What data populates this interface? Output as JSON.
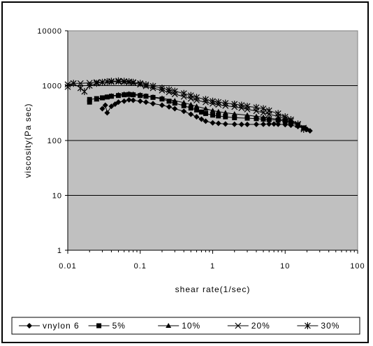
{
  "chart_data": {
    "type": "scatter",
    "xlabel": "shear rate(1/sec)",
    "ylabel": "viscosity(Pa sec)",
    "x_scale": "log",
    "y_scale": "log",
    "xlim": [
      0.01,
      100
    ],
    "ylim": [
      1,
      10000
    ],
    "x_ticks": [
      "0.01",
      "0.1",
      "1",
      "10",
      "100"
    ],
    "y_ticks": [
      "1",
      "10",
      "100",
      "1000",
      "10000"
    ],
    "grid": true,
    "plot_background": "#c0c0c0",
    "legend_position": "bottom",
    "series": [
      {
        "name": "vnylon 6",
        "marker": "diamond",
        "points": [
          [
            0.03,
            380
          ],
          [
            0.033,
            440
          ],
          [
            0.035,
            320
          ],
          [
            0.04,
            420
          ],
          [
            0.045,
            460
          ],
          [
            0.05,
            500
          ],
          [
            0.06,
            520
          ],
          [
            0.07,
            550
          ],
          [
            0.08,
            540
          ],
          [
            0.1,
            520
          ],
          [
            0.12,
            500
          ],
          [
            0.15,
            470
          ],
          [
            0.2,
            440
          ],
          [
            0.25,
            410
          ],
          [
            0.3,
            380
          ],
          [
            0.4,
            340
          ],
          [
            0.5,
            300
          ],
          [
            0.6,
            270
          ],
          [
            0.7,
            245
          ],
          [
            0.8,
            225
          ],
          [
            1,
            210
          ],
          [
            1.2,
            205
          ],
          [
            1.5,
            200
          ],
          [
            2,
            198
          ],
          [
            2.5,
            196
          ],
          [
            3,
            196
          ],
          [
            4,
            197
          ],
          [
            5,
            198
          ],
          [
            6,
            200
          ],
          [
            7,
            200
          ],
          [
            8,
            198
          ],
          [
            10,
            195
          ],
          [
            12,
            190
          ],
          [
            15,
            180
          ],
          [
            20,
            160
          ],
          [
            22,
            150
          ]
        ]
      },
      {
        "name": "5%",
        "marker": "square",
        "points": [
          [
            0.02,
            500
          ],
          [
            0.02,
            560
          ],
          [
            0.025,
            580
          ],
          [
            0.03,
            600
          ],
          [
            0.035,
            620
          ],
          [
            0.04,
            640
          ],
          [
            0.05,
            660
          ],
          [
            0.06,
            680
          ],
          [
            0.07,
            690
          ],
          [
            0.08,
            680
          ],
          [
            0.1,
            660
          ],
          [
            0.12,
            640
          ],
          [
            0.15,
            610
          ],
          [
            0.2,
            570
          ],
          [
            0.25,
            520
          ],
          [
            0.3,
            480
          ],
          [
            0.4,
            430
          ],
          [
            0.5,
            390
          ],
          [
            0.6,
            360
          ],
          [
            0.7,
            330
          ],
          [
            0.8,
            310
          ],
          [
            1,
            290
          ],
          [
            1.2,
            280
          ],
          [
            1.5,
            270
          ],
          [
            2,
            260
          ],
          [
            3,
            255
          ],
          [
            4,
            250
          ],
          [
            5,
            245
          ],
          [
            6,
            240
          ],
          [
            8,
            235
          ],
          [
            10,
            225
          ],
          [
            12,
            210
          ],
          [
            15,
            190
          ],
          [
            18,
            170
          ]
        ]
      },
      {
        "name": "10%",
        "marker": "triangle",
        "points": [
          [
            0.025,
            560
          ],
          [
            0.03,
            590
          ],
          [
            0.035,
            620
          ],
          [
            0.04,
            650
          ],
          [
            0.05,
            680
          ],
          [
            0.06,
            700
          ],
          [
            0.07,
            710
          ],
          [
            0.08,
            700
          ],
          [
            0.1,
            680
          ],
          [
            0.12,
            650
          ],
          [
            0.15,
            620
          ],
          [
            0.2,
            590
          ],
          [
            0.3,
            530
          ],
          [
            0.4,
            490
          ],
          [
            0.5,
            450
          ],
          [
            0.6,
            420
          ],
          [
            0.8,
            380
          ],
          [
            1,
            350
          ],
          [
            1.2,
            335
          ],
          [
            1.5,
            320
          ],
          [
            2,
            305
          ],
          [
            3,
            290
          ],
          [
            4,
            275
          ],
          [
            5,
            265
          ],
          [
            6,
            255
          ],
          [
            8,
            245
          ],
          [
            10,
            235
          ],
          [
            12,
            220
          ],
          [
            15,
            200
          ]
        ]
      },
      {
        "name": "20%",
        "marker": "x",
        "points": [
          [
            0.01,
            1050
          ],
          [
            0.012,
            1100
          ],
          [
            0.015,
            1100
          ],
          [
            0.02,
            1120
          ],
          [
            0.025,
            1150
          ],
          [
            0.03,
            1150
          ],
          [
            0.04,
            1170
          ],
          [
            0.05,
            1180
          ],
          [
            0.06,
            1170
          ],
          [
            0.07,
            1150
          ],
          [
            0.08,
            1120
          ],
          [
            0.1,
            1050
          ],
          [
            0.12,
            980
          ],
          [
            0.15,
            900
          ],
          [
            0.2,
            820
          ],
          [
            0.25,
            760
          ],
          [
            0.3,
            700
          ],
          [
            0.4,
            630
          ],
          [
            0.5,
            580
          ],
          [
            0.6,
            540
          ],
          [
            0.8,
            500
          ],
          [
            1,
            470
          ],
          [
            1.2,
            450
          ],
          [
            1.5,
            430
          ],
          [
            2,
            410
          ],
          [
            2.5,
            390
          ],
          [
            3,
            370
          ],
          [
            4,
            345
          ],
          [
            5,
            320
          ],
          [
            6,
            300
          ],
          [
            8,
            275
          ],
          [
            10,
            250
          ],
          [
            12,
            225
          ],
          [
            15,
            195
          ],
          [
            18,
            170
          ]
        ]
      },
      {
        "name": "30%",
        "marker": "asterisk",
        "points": [
          [
            0.01,
            950
          ],
          [
            0.012,
            1100
          ],
          [
            0.015,
            900
          ],
          [
            0.017,
            780
          ],
          [
            0.02,
            1000
          ],
          [
            0.025,
            1100
          ],
          [
            0.03,
            1150
          ],
          [
            0.035,
            1180
          ],
          [
            0.04,
            1200
          ],
          [
            0.05,
            1220
          ],
          [
            0.06,
            1200
          ],
          [
            0.07,
            1180
          ],
          [
            0.08,
            1150
          ],
          [
            0.1,
            1100
          ],
          [
            0.12,
            1040
          ],
          [
            0.15,
            980
          ],
          [
            0.2,
            900
          ],
          [
            0.25,
            840
          ],
          [
            0.3,
            790
          ],
          [
            0.4,
            720
          ],
          [
            0.5,
            660
          ],
          [
            0.6,
            610
          ],
          [
            0.8,
            560
          ],
          [
            1,
            520
          ],
          [
            1.2,
            500
          ],
          [
            1.5,
            480
          ],
          [
            2,
            460
          ],
          [
            2.5,
            440
          ],
          [
            3,
            420
          ],
          [
            4,
            400
          ],
          [
            5,
            380
          ],
          [
            6,
            350
          ],
          [
            8,
            310
          ],
          [
            10,
            270
          ],
          [
            12,
            240
          ],
          [
            15,
            200
          ],
          [
            18,
            160
          ]
        ]
      }
    ]
  }
}
